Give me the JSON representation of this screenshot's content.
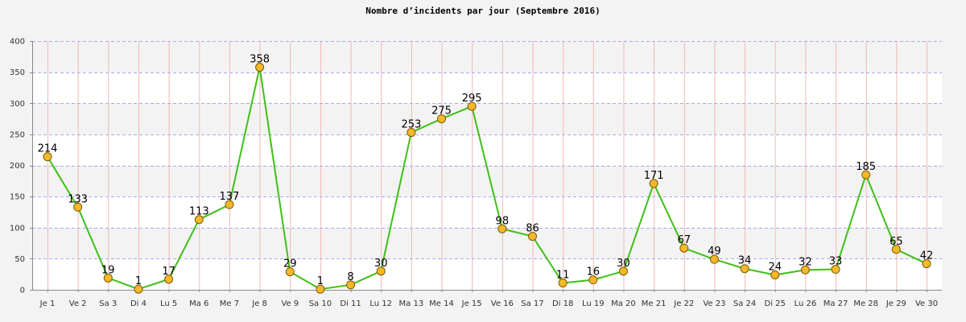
{
  "chart_data": {
    "type": "line",
    "title": "Nombre d’incidents par jour (Septembre 2016)",
    "xlabel": "",
    "ylabel": "",
    "ylim": [
      0,
      400
    ],
    "yticks": [
      0,
      50,
      100,
      150,
      200,
      250,
      300,
      350,
      400
    ],
    "grid": true,
    "categories": [
      "Je 1",
      "Ve 2",
      "Sa 3",
      "Di 4",
      "Lu 5",
      "Ma 6",
      "Me 7",
      "Je 8",
      "Ve 9",
      "Sa 10",
      "Di 11",
      "Lu 12",
      "Ma 13",
      "Me 14",
      "Je 15",
      "Ve 16",
      "Sa 17",
      "Di 18",
      "Lu 19",
      "Ma 20",
      "Me 21",
      "Je 22",
      "Ve 23",
      "Sa 24",
      "Di 25",
      "Lu 26",
      "Ma 27",
      "Me 28",
      "Je 29",
      "Ve 30"
    ],
    "series": [
      {
        "values": [
          214,
          133,
          19,
          1,
          17,
          113,
          137,
          358,
          29,
          1,
          8,
          30,
          253,
          275,
          295,
          98,
          86,
          11,
          16,
          30,
          171,
          67,
          49,
          34,
          24,
          32,
          33,
          185,
          65,
          42
        ]
      }
    ],
    "colors": {
      "line": "#3fbf16",
      "marker_fill": "#f5b82a",
      "marker_stroke": "#7a5a00",
      "vgrid": "#f2b8b8",
      "hgrid": "#a9a9f0",
      "band_light": "#ffffff",
      "band_dark": "#f3f3f3",
      "axis": "#888888"
    }
  }
}
